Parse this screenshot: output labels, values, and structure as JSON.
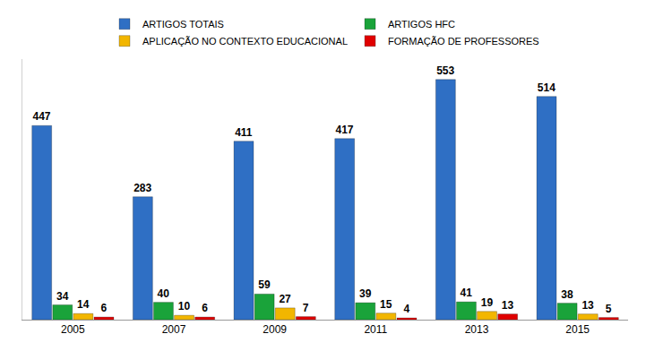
{
  "chart_data": {
    "type": "bar",
    "categories": [
      "2005",
      "2007",
      "2009",
      "2011",
      "2013",
      "2015"
    ],
    "series": [
      {
        "name": "ARTIGOS TOTAIS",
        "color": "#2f6fc4",
        "values": [
          447,
          283,
          411,
          417,
          553,
          514
        ]
      },
      {
        "name": "ARTIGOS HFC",
        "color": "#1aa33a",
        "values": [
          34,
          40,
          59,
          39,
          41,
          38
        ]
      },
      {
        "name": "APLICAÇÃO NO CONTEXTO EDUCACIONAL",
        "color": "#f2b600",
        "values": [
          14,
          10,
          27,
          15,
          19,
          13
        ]
      },
      {
        "name": "FORMAÇÃO DE PROFESSORES",
        "color": "#e00000",
        "values": [
          6,
          6,
          7,
          4,
          13,
          5
        ]
      }
    ],
    "ylim": [
      0,
      600
    ],
    "grid": false,
    "legend": "top",
    "data_labels": true,
    "tick_labels": "x"
  }
}
